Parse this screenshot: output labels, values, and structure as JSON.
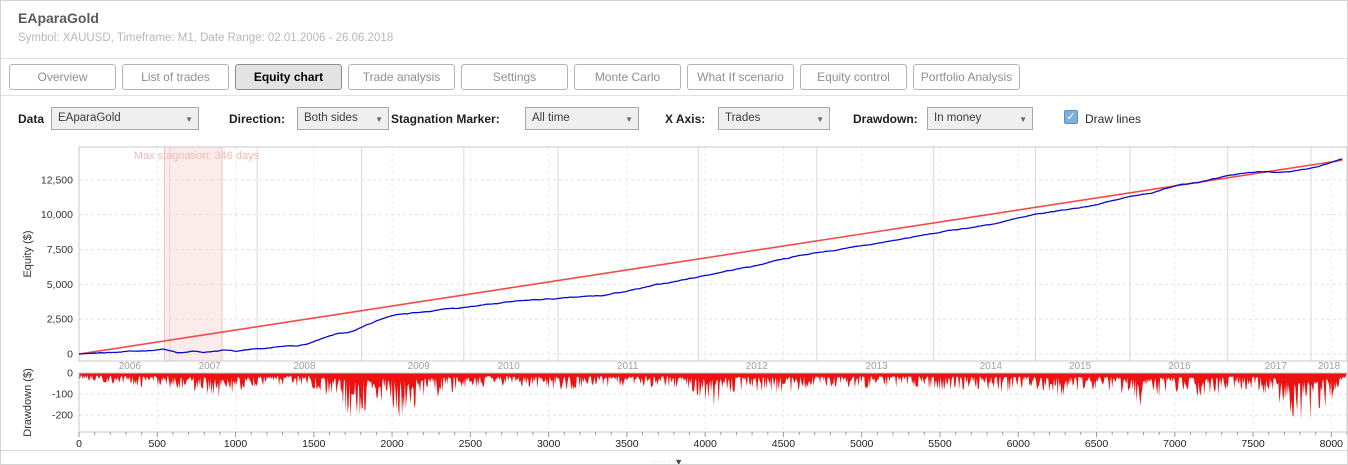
{
  "header": {
    "title": "EAparaGold",
    "subtitle": "Symbol: XAUUSD, Timeframe: M1, Date Range: 02.01.2006 - 26.06.2018"
  },
  "tabs": {
    "items": [
      {
        "label": "Overview",
        "active": false
      },
      {
        "label": "List of trades",
        "active": false
      },
      {
        "label": "Equity chart",
        "active": true
      },
      {
        "label": "Trade analysis",
        "active": false
      },
      {
        "label": "Settings",
        "active": false
      },
      {
        "label": "Monte Carlo",
        "active": false
      },
      {
        "label": "What If scenario",
        "active": false
      },
      {
        "label": "Equity control",
        "active": false
      },
      {
        "label": "Portfolio Analysis",
        "active": false
      }
    ]
  },
  "controls": {
    "data_label": "Data",
    "data_value": "EAparaGold",
    "direction_label": "Direction:",
    "direction_value": "Both sides",
    "stagnation_label": "Stagnation Marker:",
    "stagnation_value": "All time",
    "xaxis_label": "X Axis:",
    "xaxis_value": "Trades",
    "drawdown_label": "Drawdown:",
    "drawdown_value": "In money",
    "draw_lines_label": "Draw lines",
    "draw_lines_checked": true,
    "check_icon": "✓"
  },
  "footer": {
    "collapse_icon": "▼",
    "dots": "· · · ·"
  },
  "chart_data": [
    {
      "type": "line",
      "title": "Equity curve with linear trend line",
      "ylabel": "Equity ($)",
      "x_unit": "trades",
      "xlim": [
        0,
        8100
      ],
      "ylim": [
        -500,
        14850
      ],
      "yticks": [
        0,
        2500,
        5000,
        7500,
        10000,
        12500
      ],
      "ytick_labels": [
        "0",
        "2,500",
        "5,000",
        "7,500",
        "10,000",
        "12,500"
      ],
      "grid": true,
      "colors": {
        "equity": "#0a0acd",
        "trend": "#f44a4a",
        "stagnation_fill": "#fcebeb",
        "stagnation_edge": "#f3c3c3",
        "stagnation_text": "#f3b9b9"
      },
      "stagnation": {
        "label": "Max stagnation: 346 days",
        "from_trade": 546,
        "to_trade": 914
      },
      "year_labels": [
        {
          "year": "2006",
          "trade": 325
        },
        {
          "year": "2007",
          "trade": 835
        },
        {
          "year": "2008",
          "trade": 1440
        },
        {
          "year": "2009",
          "trade": 2170
        },
        {
          "year": "2010",
          "trade": 2745
        },
        {
          "year": "2011",
          "trade": 3505
        },
        {
          "year": "2012",
          "trade": 4330
        },
        {
          "year": "2013",
          "trade": 5095
        },
        {
          "year": "2014",
          "trade": 5825
        },
        {
          "year": "2015",
          "trade": 6395
        },
        {
          "year": "2016",
          "trade": 7030
        },
        {
          "year": "2017",
          "trade": 7645
        },
        {
          "year": "2018",
          "trade": 7985
        }
      ],
      "year_boundaries": [
        580,
        1138,
        1805,
        2458,
        3060,
        3956,
        4713,
        5460,
        6110,
        6713,
        7338,
        7870
      ],
      "series": [
        {
          "name": "equity",
          "points": [
            [
              0,
              0
            ],
            [
              120,
              90
            ],
            [
              230,
              150
            ],
            [
              360,
              260
            ],
            [
              480,
              260
            ],
            [
              545,
              300
            ],
            [
              640,
              120
            ],
            [
              730,
              200
            ],
            [
              800,
              140
            ],
            [
              865,
              230
            ],
            [
              920,
              310
            ],
            [
              1000,
              180
            ],
            [
              1100,
              250
            ],
            [
              1150,
              300
            ],
            [
              1250,
              420
            ],
            [
              1340,
              520
            ],
            [
              1440,
              650
            ],
            [
              1550,
              1050
            ],
            [
              1650,
              1400
            ],
            [
              1755,
              1600
            ],
            [
              1900,
              2300
            ],
            [
              2000,
              2750
            ],
            [
              2075,
              2950
            ],
            [
              2180,
              3050
            ],
            [
              2265,
              3100
            ],
            [
              2350,
              3250
            ],
            [
              2455,
              3300
            ],
            [
              2580,
              3500
            ],
            [
              2710,
              3650
            ],
            [
              2850,
              3800
            ],
            [
              2965,
              3900
            ],
            [
              3100,
              3980
            ],
            [
              3230,
              4080
            ],
            [
              3345,
              4150
            ],
            [
              3480,
              4450
            ],
            [
              3600,
              4700
            ],
            [
              3790,
              5150
            ],
            [
              3980,
              5600
            ],
            [
              4150,
              6000
            ],
            [
              4330,
              6350
            ],
            [
              4470,
              6800
            ],
            [
              4615,
              7100
            ],
            [
              4780,
              7400
            ],
            [
              4930,
              7600
            ],
            [
              5090,
              7900
            ],
            [
              5260,
              8250
            ],
            [
              5440,
              8600
            ],
            [
              5620,
              8950
            ],
            [
              5820,
              9300
            ],
            [
              5990,
              9700
            ],
            [
              6140,
              10000
            ],
            [
              6260,
              10250
            ],
            [
              6390,
              10500
            ],
            [
              6520,
              10800
            ],
            [
              6645,
              11100
            ],
            [
              6780,
              11450
            ],
            [
              6900,
              11700
            ],
            [
              7030,
              12200
            ],
            [
              7160,
              12400
            ],
            [
              7285,
              12600
            ],
            [
              7400,
              12850
            ],
            [
              7475,
              13000
            ],
            [
              7600,
              13100
            ],
            [
              7730,
              13050
            ],
            [
              7855,
              13200
            ],
            [
              7980,
              13600
            ],
            [
              8075,
              13950
            ]
          ]
        },
        {
          "name": "trend",
          "points": [
            [
              0,
              0
            ],
            [
              8070,
              13900
            ]
          ]
        }
      ]
    },
    {
      "type": "area",
      "title": "Drawdown",
      "ylabel": "Drawdown ($)",
      "x_unit": "trades",
      "xlim": [
        0,
        8100
      ],
      "ylim": [
        -280,
        0
      ],
      "yticks": [
        0,
        -100,
        -200
      ],
      "xticks": [
        0,
        500,
        1000,
        1500,
        2000,
        2500,
        3000,
        3500,
        4000,
        4500,
        5000,
        5500,
        6000,
        6500,
        7000,
        7500,
        8000
      ],
      "color": "#ee1111",
      "envelope": [
        [
          0,
          30
        ],
        [
          200,
          45
        ],
        [
          400,
          60
        ],
        [
          600,
          70
        ],
        [
          800,
          100
        ],
        [
          950,
          120
        ],
        [
          1100,
          60
        ],
        [
          1300,
          55
        ],
        [
          1500,
          70
        ],
        [
          1650,
          140
        ],
        [
          1750,
          235
        ],
        [
          1850,
          160
        ],
        [
          1950,
          130
        ],
        [
          2050,
          210
        ],
        [
          2150,
          160
        ],
        [
          2250,
          130
        ],
        [
          2350,
          90
        ],
        [
          2500,
          70
        ],
        [
          2700,
          55
        ],
        [
          2900,
          65
        ],
        [
          3100,
          80
        ],
        [
          3300,
          60
        ],
        [
          3500,
          70
        ],
        [
          3700,
          60
        ],
        [
          3900,
          80
        ],
        [
          4050,
          155
        ],
        [
          4200,
          80
        ],
        [
          4400,
          95
        ],
        [
          4550,
          90
        ],
        [
          4700,
          60
        ],
        [
          4900,
          65
        ],
        [
          5100,
          70
        ],
        [
          5300,
          60
        ],
        [
          5500,
          80
        ],
        [
          5700,
          70
        ],
        [
          5900,
          90
        ],
        [
          6100,
          70
        ],
        [
          6265,
          110
        ],
        [
          6450,
          70
        ],
        [
          6650,
          90
        ],
        [
          6805,
          170
        ],
        [
          6950,
          80
        ],
        [
          7100,
          90
        ],
        [
          7215,
          135
        ],
        [
          7350,
          70
        ],
        [
          7500,
          80
        ],
        [
          7650,
          130
        ],
        [
          7750,
          210
        ],
        [
          7850,
          230
        ],
        [
          7950,
          180
        ],
        [
          8020,
          120
        ],
        [
          8070,
          60
        ]
      ]
    }
  ]
}
